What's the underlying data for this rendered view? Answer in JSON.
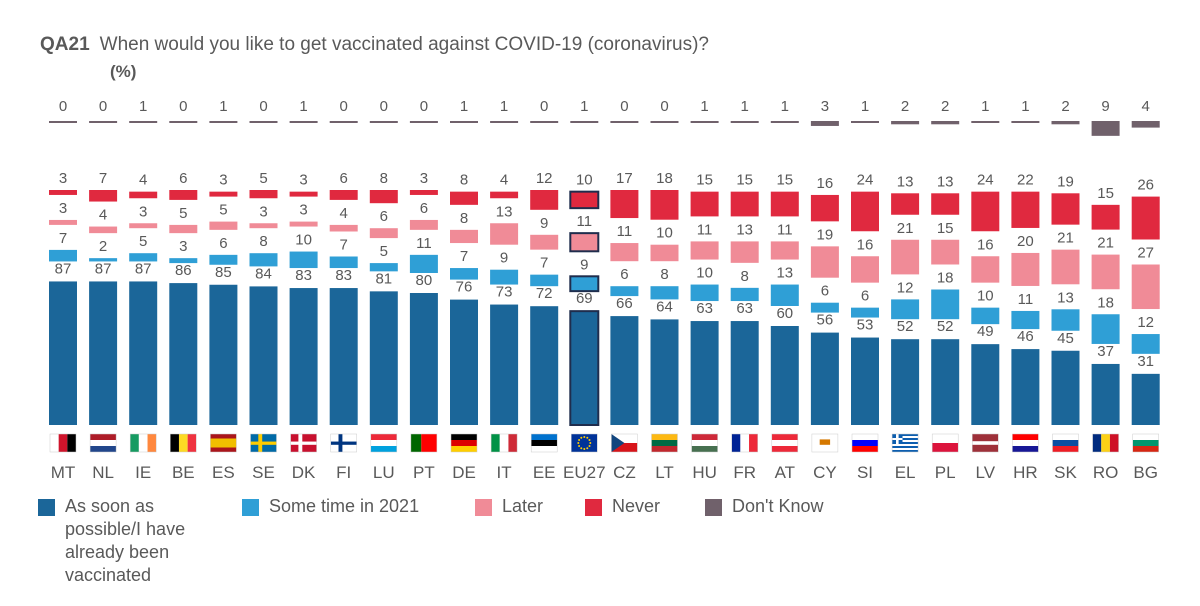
{
  "question_code": "QA21",
  "question_text": "When would you like to get vaccinated against COVID-19 (coronavirus)?",
  "unit_label": "(%)",
  "colors": {
    "As soon as possible": "#1b6699",
    "Some time in 2021": "#2f9fd6",
    "Later": "#f08b97",
    "Never": "#e0293f",
    "Don't Know": "#70616b",
    "highlight_border": "#1f2d4d",
    "text": "#595959"
  },
  "legend": [
    {
      "label": "As soon as possible/I have already been vaccinated",
      "color": "#1b6699"
    },
    {
      "label": "Some time in 2021",
      "color": "#2f9fd6"
    },
    {
      "label": "Later",
      "color": "#f08b97"
    },
    {
      "label": "Never",
      "color": "#e0293f"
    },
    {
      "label": "Don't Know",
      "color": "#70616b"
    }
  ],
  "chart_data": {
    "type": "bar",
    "title": "When would you like to get vaccinated against COVID-19 (coronavirus)?",
    "ylabel": "(%)",
    "highlight_category": "EU27",
    "categories": [
      "MT",
      "NL",
      "IE",
      "BE",
      "ES",
      "SE",
      "DK",
      "FI",
      "LU",
      "PT",
      "DE",
      "IT",
      "EE",
      "EU27",
      "CZ",
      "LT",
      "HU",
      "FR",
      "AT",
      "CY",
      "SI",
      "EL",
      "PL",
      "LV",
      "HR",
      "SK",
      "RO",
      "BG"
    ],
    "series": [
      {
        "name": "As soon as possible/I have already been vaccinated",
        "values": [
          87,
          87,
          87,
          86,
          85,
          84,
          83,
          83,
          81,
          80,
          76,
          73,
          72,
          69,
          66,
          64,
          63,
          63,
          60,
          56,
          53,
          52,
          52,
          49,
          46,
          45,
          37,
          31
        ]
      },
      {
        "name": "Some time in 2021",
        "values": [
          7,
          2,
          5,
          3,
          6,
          8,
          10,
          7,
          5,
          11,
          7,
          9,
          7,
          9,
          6,
          8,
          10,
          8,
          13,
          6,
          6,
          12,
          18,
          10,
          11,
          13,
          18,
          12
        ]
      },
      {
        "name": "Later",
        "values": [
          3,
          4,
          3,
          5,
          5,
          3,
          3,
          4,
          6,
          6,
          8,
          13,
          9,
          11,
          11,
          10,
          11,
          13,
          11,
          19,
          16,
          21,
          15,
          16,
          20,
          21,
          21,
          27
        ]
      },
      {
        "name": "Never",
        "values": [
          3,
          7,
          4,
          6,
          3,
          5,
          3,
          6,
          8,
          3,
          8,
          4,
          12,
          10,
          17,
          18,
          15,
          15,
          15,
          16,
          24,
          13,
          13,
          24,
          22,
          19,
          15,
          26
        ]
      },
      {
        "name": "Don't Know",
        "values": [
          0,
          0,
          1,
          0,
          1,
          0,
          1,
          0,
          0,
          0,
          1,
          1,
          0,
          1,
          0,
          0,
          1,
          1,
          1,
          3,
          1,
          2,
          2,
          1,
          1,
          2,
          9,
          4
        ]
      }
    ]
  }
}
